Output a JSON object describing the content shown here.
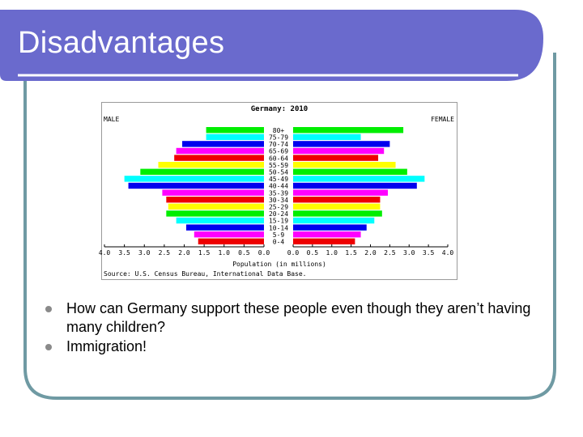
{
  "slide": {
    "title": "Disadvantages",
    "colors": {
      "title_bar": "#6a6acd",
      "frame": "#6f9aa3"
    }
  },
  "bullets": [
    "How can Germany support these people even though they aren’t having many children?",
    "Immigration!"
  ],
  "chart_data": {
    "type": "bar",
    "orientation": "horizontal-pyramid",
    "title": "Germany: 2010",
    "left_label": "MALE",
    "right_label": "FEMALE",
    "xlabel": "Population (in millions)",
    "source": "Source: U.S. Census Bureau, International Data Base.",
    "xlim": [
      0,
      4.0
    ],
    "x_ticks_left": [
      "4.0",
      "3.5",
      "3.0",
      "2.5",
      "2.0",
      "1.5",
      "1.0",
      "0.5",
      "0.0"
    ],
    "x_ticks_right": [
      "0.0",
      "0.5",
      "1.0",
      "1.5",
      "2.0",
      "2.5",
      "3.0",
      "3.5",
      "4.0"
    ],
    "categories": [
      "80+",
      "75-79",
      "70-74",
      "65-69",
      "60-64",
      "55-59",
      "50-54",
      "45-49",
      "40-44",
      "35-39",
      "30-34",
      "25-29",
      "20-24",
      "15-19",
      "10-14",
      "5-9",
      "0-4"
    ],
    "series": [
      {
        "name": "MALE",
        "values": [
          1.45,
          1.45,
          2.05,
          2.2,
          2.25,
          2.65,
          3.1,
          3.5,
          3.4,
          2.55,
          2.45,
          2.4,
          2.45,
          2.2,
          1.95,
          1.75,
          1.65
        ]
      },
      {
        "name": "FEMALE",
        "values": [
          2.85,
          1.75,
          2.5,
          2.35,
          2.2,
          2.65,
          2.95,
          3.4,
          3.2,
          2.45,
          2.25,
          2.25,
          2.3,
          2.1,
          1.9,
          1.75,
          1.6
        ]
      }
    ],
    "bar_colors": [
      "#00ee00",
      "#00ffff",
      "#0000ee",
      "#ff00ff",
      "#ee0000",
      "#ffff00",
      "#00ee00",
      "#00ffff",
      "#0000ee",
      "#ff00ff",
      "#ee0000",
      "#ffff00",
      "#00ee00",
      "#00ffff",
      "#0000ee",
      "#ff00ff",
      "#ee0000"
    ],
    "grid": false
  }
}
